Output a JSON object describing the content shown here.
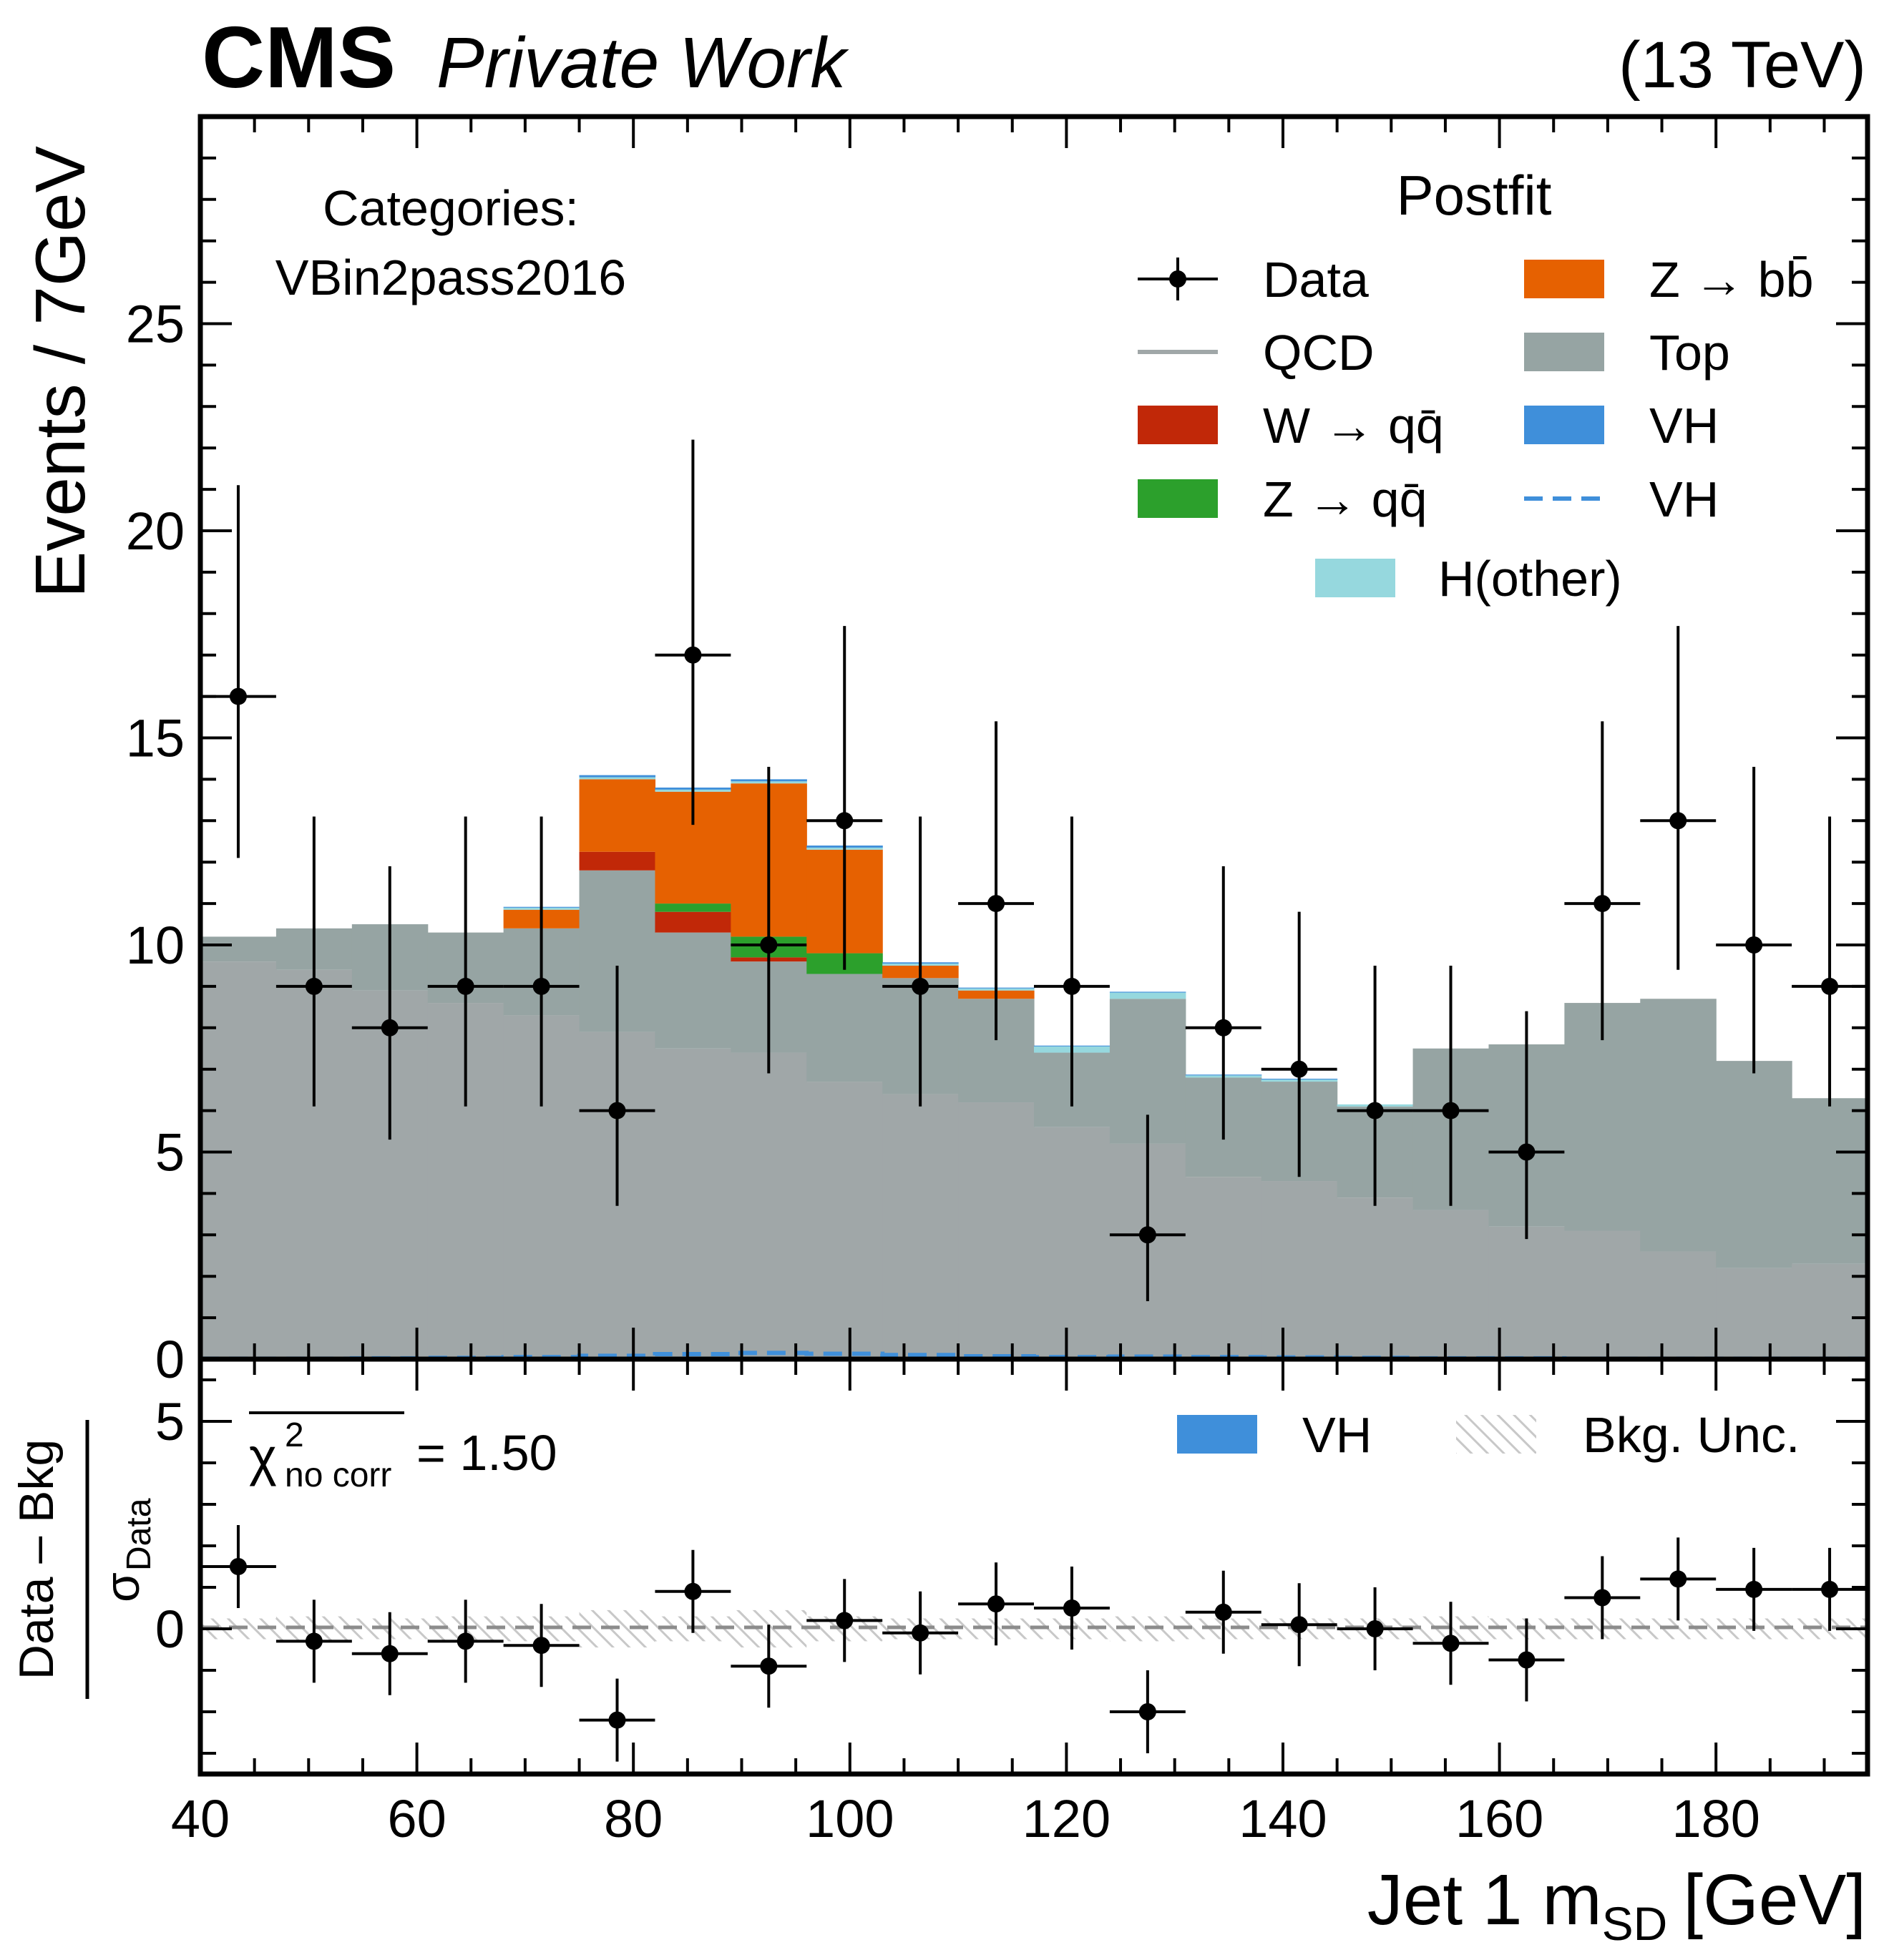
{
  "header": {
    "experiment": "CMS",
    "tag": "Private Work",
    "energy": "(13 TeV)"
  },
  "category": {
    "label": "Categories:",
    "name": "VBin2pass2016"
  },
  "legend": {
    "title": "Postfit",
    "entries": [
      {
        "id": "data",
        "label": "Data",
        "kind": "marker"
      },
      {
        "id": "zbb",
        "label": "Z → bb̄",
        "kind": "patch",
        "color": "#e66101"
      },
      {
        "id": "qcd",
        "label": "QCD",
        "kind": "line",
        "color": "#a0a7a8"
      },
      {
        "id": "top",
        "label": "Top",
        "kind": "patch",
        "color": "#96a4a3"
      },
      {
        "id": "wqq",
        "label": "W → qq̄",
        "kind": "patch",
        "color": "#c12808"
      },
      {
        "id": "vh",
        "label": "VH",
        "kind": "patch",
        "color": "#3f8fda"
      },
      {
        "id": "zqq",
        "label": "Z → qq̄",
        "kind": "patch",
        "color": "#2ca02c"
      },
      {
        "id": "vh_line",
        "label": "VH",
        "kind": "dashed",
        "color": "#3f8fda"
      },
      {
        "id": "hother",
        "label": "H(other)",
        "kind": "patch",
        "color": "#96d8de"
      }
    ]
  },
  "ratio_legend": {
    "signal": {
      "label": "VH",
      "color": "#3f8fda"
    },
    "unc": {
      "label": "Bkg. Unc."
    }
  },
  "chi2": {
    "symbol": "χ",
    "sup": "2",
    "sub": "no corr",
    "value": "= 1.50"
  },
  "axes": {
    "ylabel_main": "Events / 7GeV",
    "ylabel_ratio_num": "Data – Bkg",
    "ylabel_ratio_den_symbol": "σ",
    "ylabel_ratio_den_sub": "Data",
    "xlabel_main": "Jet 1 m",
    "xlabel_sub": "SD",
    "xlabel_unit": "[GeV]",
    "xticks": [
      "40",
      "60",
      "80",
      "100",
      "120",
      "140",
      "160",
      "180"
    ],
    "yticks_main": [
      "0",
      "5",
      "10",
      "15",
      "20",
      "25"
    ],
    "yticks_ratio": [
      "0",
      "5"
    ]
  },
  "chart_data": {
    "type": "bar",
    "subtype": "stacked histogram with data points and pull ratio panel",
    "xlim": [
      40,
      194
    ],
    "ylim": [
      0,
      30
    ],
    "ratio_ylim": [
      -3.5,
      6.5
    ],
    "bin_edges": [
      40,
      47,
      54,
      61,
      68,
      75,
      82,
      89,
      96,
      103,
      110,
      117,
      124,
      131,
      138,
      145,
      152,
      159,
      166,
      173,
      180,
      187,
      194
    ],
    "stack": {
      "qcd": [
        9.6,
        9.4,
        8.9,
        8.6,
        8.3,
        7.9,
        7.5,
        7.4,
        6.7,
        6.4,
        6.2,
        5.6,
        5.2,
        4.4,
        4.3,
        3.9,
        3.6,
        3.2,
        3.1,
        2.6,
        2.2,
        2.3
      ],
      "top": [
        0.6,
        1.0,
        1.6,
        1.7,
        2.1,
        3.9,
        2.8,
        2.2,
        2.6,
        2.8,
        2.5,
        1.8,
        3.5,
        2.4,
        2.4,
        2.2,
        3.9,
        4.4,
        5.5,
        6.1,
        5.0,
        4.0
      ],
      "wqq": [
        0,
        0,
        0,
        0,
        0,
        0.45,
        0.5,
        0.1,
        0,
        0,
        0,
        0,
        0,
        0,
        0,
        0,
        0,
        0,
        0,
        0,
        0,
        0
      ],
      "zqq": [
        0,
        0,
        0,
        0,
        0,
        0,
        0.2,
        0.5,
        0.5,
        0,
        0,
        0,
        0,
        0,
        0,
        0,
        0,
        0,
        0,
        0,
        0,
        0
      ],
      "zbb": [
        0,
        0,
        0,
        0,
        0.45,
        1.75,
        2.7,
        3.7,
        2.5,
        0.3,
        0.2,
        0,
        0,
        0,
        0,
        0,
        0,
        0,
        0,
        0,
        0,
        0
      ],
      "hother": [
        0,
        0,
        0,
        0,
        0.05,
        0.05,
        0.05,
        0.05,
        0.05,
        0.05,
        0.05,
        0.15,
        0.15,
        0.05,
        0.05,
        0.05,
        0,
        0,
        0,
        0,
        0,
        0
      ],
      "vh": [
        0,
        0,
        0,
        0,
        0.02,
        0.05,
        0.05,
        0.05,
        0.05,
        0.03,
        0.02,
        0.02,
        0.02,
        0.02,
        0.02,
        0,
        0,
        0,
        0,
        0,
        0,
        0
      ]
    },
    "vh_line": [
      0.01,
      0.01,
      0.02,
      0.03,
      0.05,
      0.08,
      0.12,
      0.15,
      0.13,
      0.1,
      0.07,
      0.05,
      0.06,
      0.05,
      0.04,
      0.03,
      0.02,
      0.02,
      0.01,
      0.01,
      0.01,
      0.01
    ],
    "data": {
      "x": [
        43.5,
        50.5,
        57.5,
        64.5,
        71.5,
        78.5,
        85.5,
        92.5,
        99.5,
        106.5,
        113.5,
        120.5,
        127.5,
        134.5,
        141.5,
        148.5,
        155.5,
        162.5,
        169.5,
        176.5,
        183.5,
        190.5
      ],
      "y": [
        16,
        9,
        8,
        9,
        9,
        6,
        17,
        10,
        13,
        9,
        11,
        9,
        3,
        8,
        7,
        6,
        6,
        5,
        11,
        13,
        10,
        9
      ],
      "yerr_low": [
        3.9,
        2.9,
        2.7,
        2.9,
        2.9,
        2.3,
        4.1,
        3.1,
        3.6,
        2.9,
        3.3,
        2.9,
        1.6,
        2.7,
        2.6,
        2.3,
        2.3,
        2.1,
        3.3,
        3.6,
        3.1,
        2.9
      ],
      "yerr_high": [
        5.1,
        4.1,
        3.9,
        4.1,
        4.1,
        3.5,
        5.2,
        4.3,
        4.7,
        4.1,
        4.4,
        4.1,
        2.9,
        3.9,
        3.8,
        3.5,
        3.5,
        3.4,
        4.4,
        4.7,
        4.3,
        4.1
      ]
    },
    "pulls": {
      "y": [
        1.5,
        -0.3,
        -0.6,
        -0.3,
        -0.4,
        -2.2,
        0.9,
        -0.9,
        0.2,
        -0.1,
        0.6,
        0.5,
        -2.0,
        0.4,
        0.1,
        0.0,
        -0.35,
        -0.75,
        0.75,
        1.2,
        0.95,
        0.95
      ],
      "err": [
        1.0,
        1.0,
        1.0,
        1.0,
        1.0,
        1.0,
        1.0,
        1.0,
        1.0,
        1.0,
        1.0,
        1.0,
        1.0,
        1.0,
        1.0,
        1.0,
        1.0,
        1.0,
        1.0,
        1.0,
        1.0,
        1.0
      ]
    },
    "bkg_unc_ratio": [
      0.25,
      0.3,
      0.25,
      0.3,
      0.3,
      0.45,
      0.3,
      0.45,
      0.3,
      0.25,
      0.25,
      0.25,
      0.3,
      0.25,
      0.25,
      0.25,
      0.3,
      0.25,
      0.25,
      0.25,
      0.25,
      0.25
    ]
  }
}
